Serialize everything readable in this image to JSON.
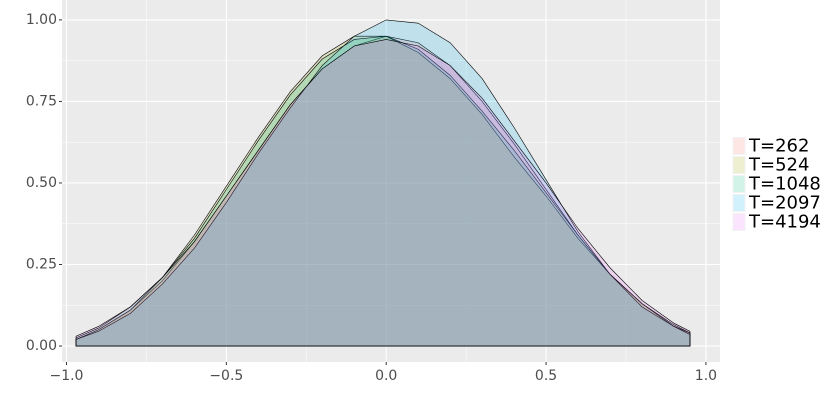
{
  "chart_data": {
    "type": "area",
    "x": [
      -0.97,
      -0.9,
      -0.8,
      -0.7,
      -0.6,
      -0.5,
      -0.4,
      -0.3,
      -0.2,
      -0.1,
      0,
      0.1,
      0.2,
      0.3,
      0.4,
      0.5,
      0.6,
      0.7,
      0.8,
      0.9,
      0.95
    ],
    "series": [
      {
        "name": "T=262",
        "color": "#F8766D",
        "values": [
          0.02,
          0.05,
          0.11,
          0.2,
          0.32,
          0.46,
          0.6,
          0.74,
          0.85,
          0.92,
          0.95,
          0.93,
          0.86,
          0.75,
          0.62,
          0.48,
          0.34,
          0.22,
          0.13,
          0.06,
          0.04
        ]
      },
      {
        "name": "T=524",
        "color": "#A3A500",
        "values": [
          0.02,
          0.05,
          0.11,
          0.21,
          0.34,
          0.49,
          0.64,
          0.78,
          0.89,
          0.95,
          0.95,
          0.9,
          0.82,
          0.71,
          0.58,
          0.46,
          0.33,
          0.22,
          0.13,
          0.06,
          0.04
        ]
      },
      {
        "name": "T=1048",
        "color": "#00BF7D",
        "values": [
          0.025,
          0.055,
          0.12,
          0.21,
          0.33,
          0.48,
          0.63,
          0.77,
          0.88,
          0.94,
          0.95,
          0.91,
          0.83,
          0.72,
          0.6,
          0.47,
          0.34,
          0.22,
          0.13,
          0.065,
          0.04
        ]
      },
      {
        "name": "T=2097",
        "color": "#00B0F6",
        "values": [
          0.02,
          0.045,
          0.1,
          0.19,
          0.3,
          0.44,
          0.59,
          0.73,
          0.86,
          0.95,
          1.0,
          0.99,
          0.93,
          0.82,
          0.67,
          0.51,
          0.35,
          0.22,
          0.12,
          0.06,
          0.035
        ]
      },
      {
        "name": "T=4194",
        "color": "#E76BF3",
        "values": [
          0.03,
          0.06,
          0.12,
          0.21,
          0.32,
          0.46,
          0.6,
          0.74,
          0.85,
          0.92,
          0.94,
          0.92,
          0.86,
          0.76,
          0.63,
          0.5,
          0.36,
          0.24,
          0.14,
          0.07,
          0.045
        ]
      }
    ],
    "xlim": [
      -1.014,
      1.044
    ],
    "ylim": [
      -0.049,
      1.061
    ],
    "xticks": [
      {
        "value": -1.0,
        "label": "−1.0"
      },
      {
        "value": -0.5,
        "label": "−0.5"
      },
      {
        "value": 0.0,
        "label": "0.0"
      },
      0.5,
      {
        "value": 1.0,
        "label": "1.0"
      }
    ],
    "yticks": [
      {
        "value": 0,
        "label": "0.00"
      },
      0.25,
      {
        "value": 0.5,
        "label": "0.50"
      },
      0.75,
      {
        "value": 1,
        "label": "1.00"
      }
    ],
    "grid": true,
    "legend": "right"
  }
}
